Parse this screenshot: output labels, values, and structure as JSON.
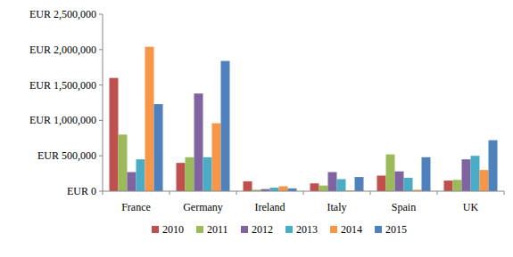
{
  "chart_data": {
    "type": "bar",
    "categories": [
      "France",
      "Germany",
      "Ireland",
      "Italy",
      "Spain",
      "UK"
    ],
    "series": [
      {
        "name": "2010",
        "color": "#c0504d",
        "values": [
          1600000,
          400000,
          140000,
          110000,
          220000,
          150000
        ]
      },
      {
        "name": "2011",
        "color": "#9bbb59",
        "values": [
          800000,
          480000,
          20000,
          80000,
          520000,
          160000
        ]
      },
      {
        "name": "2012",
        "color": "#8064a2",
        "values": [
          270000,
          1380000,
          30000,
          270000,
          280000,
          450000
        ]
      },
      {
        "name": "2013",
        "color": "#4bacc6",
        "values": [
          450000,
          480000,
          50000,
          170000,
          190000,
          500000
        ]
      },
      {
        "name": "2014",
        "color": "#f79646",
        "values": [
          2040000,
          960000,
          70000,
          10000,
          20000,
          300000
        ]
      },
      {
        "name": "2015",
        "color": "#4f81bd",
        "values": [
          1230000,
          1840000,
          40000,
          200000,
          480000,
          720000
        ]
      }
    ],
    "ylim": [
      0,
      2500000
    ],
    "yticks": [
      {
        "value": 0,
        "label": "EUR 0"
      },
      {
        "value": 500000,
        "label": "EUR 500,000"
      },
      {
        "value": 1000000,
        "label": "EUR 1,000,000"
      },
      {
        "value": 1500000,
        "label": "EUR 1,500,000"
      },
      {
        "value": 2000000,
        "label": "EUR 2,000,000"
      },
      {
        "value": 2500000,
        "label": "EUR 2,500,000"
      }
    ],
    "grid": false,
    "legend": "bottom"
  }
}
